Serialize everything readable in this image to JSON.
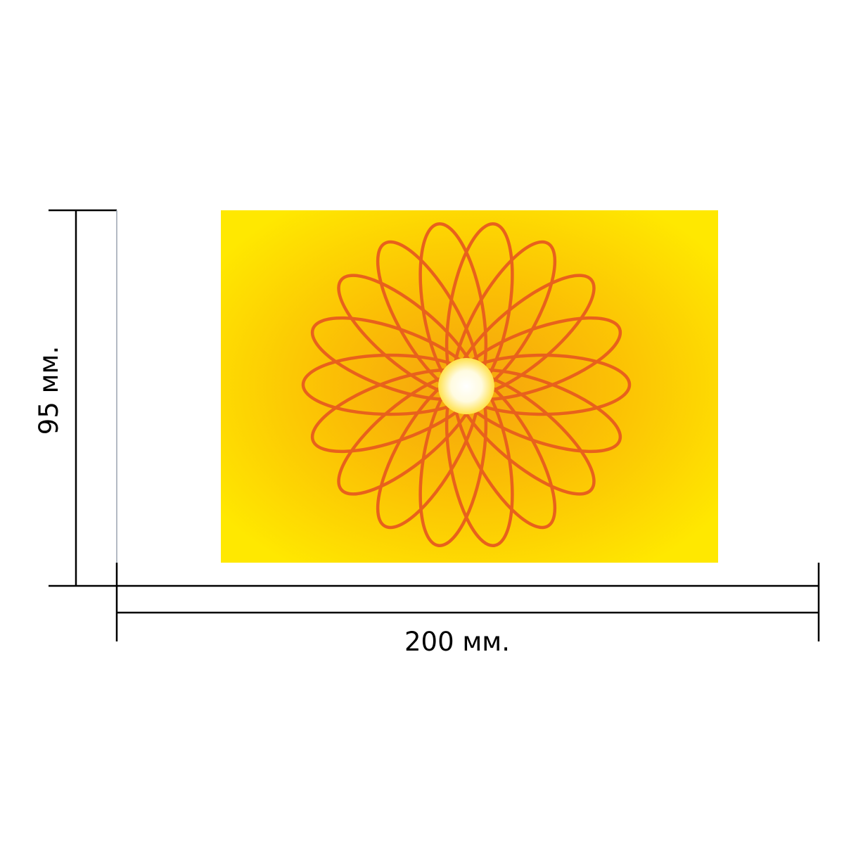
{
  "dimensions": {
    "width_label": "200 мм.",
    "height_label": "95 мм."
  },
  "artwork": {
    "petal_count": 18,
    "colors": {
      "background_edge": "#FFE800",
      "background_center": "#F5A20E",
      "spirograph_stroke": "#E8611C",
      "center_highlight": "#FFFFFF",
      "center_glow": "#FFE14A",
      "dimension_lines": "#000000"
    }
  }
}
